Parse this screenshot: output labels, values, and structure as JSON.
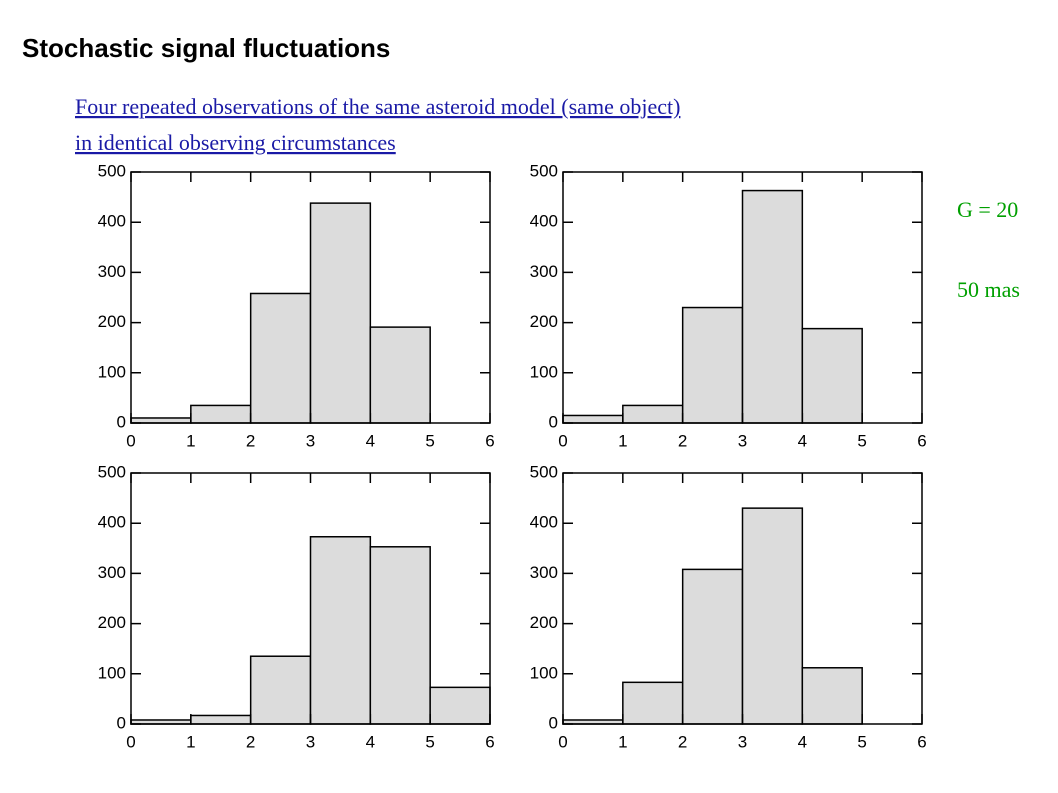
{
  "title": "Stochastic signal fluctuations",
  "link": [
    "Four repeated observations of the same asteroid model (same object) ",
    "in identical observing circumstances"
  ],
  "annotations": [
    "G = 20",
    "50 mas"
  ],
  "chart_data": [
    {
      "type": "histogram",
      "bins": [
        0,
        1,
        2,
        3,
        4,
        5,
        6
      ],
      "counts": [
        10,
        35,
        258,
        438,
        191,
        0
      ],
      "color": "#dcdcdc",
      "xlim": [
        0,
        6
      ],
      "ylim": [
        0,
        500
      ],
      "xticks": [
        0,
        1,
        2,
        3,
        4,
        5,
        6
      ],
      "yticks": [
        0,
        100,
        200,
        300,
        400,
        500
      ]
    },
    {
      "type": "histogram",
      "bins": [
        0,
        1,
        2,
        3,
        4,
        5,
        6
      ],
      "counts": [
        15,
        35,
        230,
        463,
        188,
        0
      ],
      "color": "#dcdcdc",
      "xlim": [
        0,
        6
      ],
      "ylim": [
        0,
        500
      ],
      "xticks": [
        0,
        1,
        2,
        3,
        4,
        5,
        6
      ],
      "yticks": [
        0,
        100,
        200,
        300,
        400,
        500
      ]
    },
    {
      "type": "histogram",
      "bins": [
        0,
        1,
        2,
        3,
        4,
        5,
        6
      ],
      "counts": [
        8,
        17,
        135,
        373,
        353,
        73
      ],
      "color": "#dcdcdc",
      "xlim": [
        0,
        6
      ],
      "ylim": [
        0,
        500
      ],
      "xticks": [
        0,
        1,
        2,
        3,
        4,
        5,
        6
      ],
      "yticks": [
        0,
        100,
        200,
        300,
        400,
        500
      ]
    },
    {
      "type": "histogram",
      "bins": [
        0,
        1,
        2,
        3,
        4,
        5,
        6
      ],
      "counts": [
        8,
        83,
        308,
        430,
        112,
        0
      ],
      "color": "#dcdcdc",
      "xlim": [
        0,
        6
      ],
      "ylim": [
        0,
        500
      ],
      "xticks": [
        0,
        1,
        2,
        3,
        4,
        5,
        6
      ],
      "yticks": [
        0,
        100,
        200,
        300,
        400,
        500
      ]
    }
  ]
}
